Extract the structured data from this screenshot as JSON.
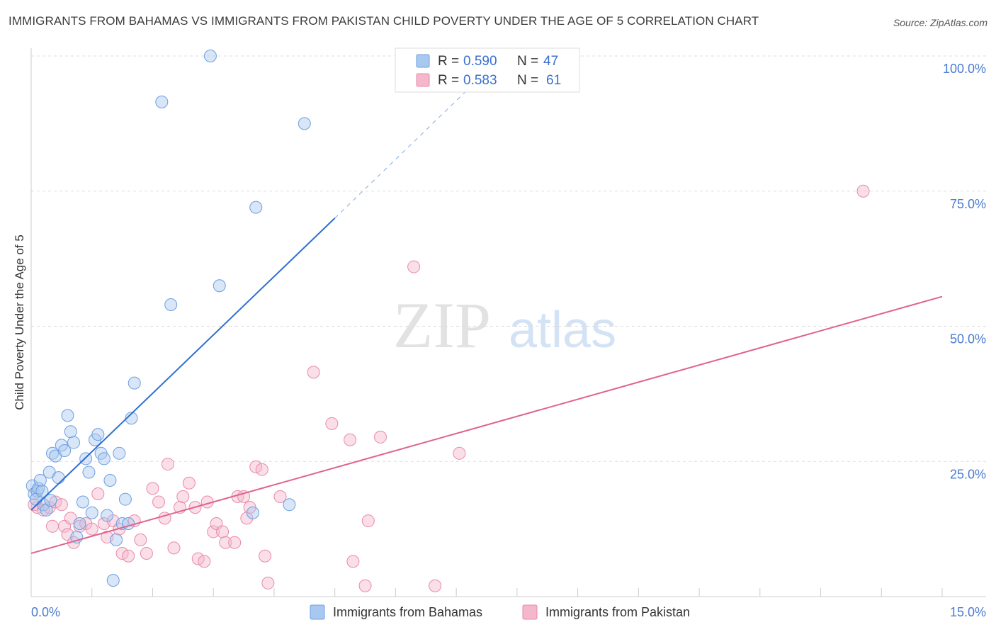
{
  "title": "IMMIGRANTS FROM BAHAMAS VS IMMIGRANTS FROM PAKISTAN CHILD POVERTY UNDER THE AGE OF 5 CORRELATION CHART",
  "source": "Source: ZipAtlas.com",
  "watermark": {
    "zip": "ZIP",
    "atlas": "atlas"
  },
  "colors": {
    "blue_fill": "#a9c8f0",
    "blue_stroke": "#6c9fe0",
    "blue_line": "#2e6fd0",
    "pink_fill": "#f5b7cb",
    "pink_stroke": "#e88aaa",
    "pink_line": "#e0638f",
    "axis_label": "#4a7bd0",
    "grid": "#dddddd"
  },
  "chart_data": {
    "type": "scatter",
    "title": "IMMIGRANTS FROM BAHAMAS VS IMMIGRANTS FROM PAKISTAN CHILD POVERTY UNDER THE AGE OF 5 CORRELATION CHART",
    "xlabel": "",
    "ylabel": "Child Poverty Under the Age of 5",
    "xlim": [
      0,
      15
    ],
    "ylim": [
      0,
      100
    ],
    "x_tick_labels": [
      "0.0%",
      "15.0%"
    ],
    "y_tick_values": [
      25,
      50,
      75,
      100
    ],
    "y_tick_labels": [
      "25.0%",
      "50.0%",
      "75.0%",
      "100.0%"
    ],
    "legend": {
      "entries": [
        {
          "r_label": "R =",
          "r_value": "0.590",
          "n_label": "N =",
          "n_value": "47"
        },
        {
          "r_label": "R =",
          "r_value": "0.583",
          "n_label": "N =",
          "n_value": "61"
        }
      ]
    },
    "bottom_legend": [
      "Immigrants from Bahamas",
      "Immigrants from Pakistan"
    ],
    "series": [
      {
        "name": "Immigrants from Bahamas",
        "color": "blue",
        "trend": {
          "x0": 0.0,
          "y0": 16.0,
          "x1": 5.0,
          "y1": 70.0,
          "dash_to_x": 7.3,
          "dash_to_y": 95.0
        },
        "points": [
          [
            0.02,
            20.5
          ],
          [
            0.05,
            19.0
          ],
          [
            0.1,
            19.5
          ],
          [
            0.12,
            20.0
          ],
          [
            0.15,
            21.5
          ],
          [
            0.2,
            17.0
          ],
          [
            0.25,
            16.0
          ],
          [
            0.3,
            23.0
          ],
          [
            0.35,
            26.5
          ],
          [
            0.4,
            26.0
          ],
          [
            0.45,
            22.0
          ],
          [
            0.5,
            28.0
          ],
          [
            0.55,
            27.0
          ],
          [
            0.6,
            33.5
          ],
          [
            0.65,
            30.5
          ],
          [
            0.7,
            28.5
          ],
          [
            0.75,
            11.0
          ],
          [
            0.8,
            13.5
          ],
          [
            0.85,
            17.5
          ],
          [
            0.9,
            25.5
          ],
          [
            0.95,
            23.0
          ],
          [
            1.0,
            15.5
          ],
          [
            1.05,
            29.0
          ],
          [
            1.1,
            30.0
          ],
          [
            1.15,
            26.5
          ],
          [
            1.2,
            25.5
          ],
          [
            1.25,
            15.0
          ],
          [
            1.3,
            21.5
          ],
          [
            1.35,
            3.0
          ],
          [
            1.4,
            10.5
          ],
          [
            1.45,
            26.5
          ],
          [
            1.5,
            13.5
          ],
          [
            1.55,
            18.0
          ],
          [
            1.6,
            13.5
          ],
          [
            1.65,
            33.0
          ],
          [
            1.7,
            39.5
          ],
          [
            2.15,
            91.5
          ],
          [
            2.3,
            54.0
          ],
          [
            2.95,
            100.0
          ],
          [
            3.1,
            57.5
          ],
          [
            3.7,
            72.0
          ],
          [
            3.65,
            15.5
          ],
          [
            4.25,
            17.0
          ],
          [
            4.5,
            87.5
          ],
          [
            0.08,
            18.0
          ],
          [
            0.18,
            19.5
          ],
          [
            0.32,
            17.8
          ]
        ]
      },
      {
        "name": "Immigrants from Pakistan",
        "color": "pink",
        "trend": {
          "x0": 0.0,
          "y0": 8.0,
          "x1": 15.0,
          "y1": 55.5
        },
        "points": [
          [
            0.1,
            16.5
          ],
          [
            0.2,
            16.0
          ],
          [
            0.3,
            16.5
          ],
          [
            0.35,
            13.0
          ],
          [
            0.4,
            17.5
          ],
          [
            0.5,
            17.0
          ],
          [
            0.55,
            13.0
          ],
          [
            0.6,
            11.5
          ],
          [
            0.65,
            14.5
          ],
          [
            0.7,
            10.0
          ],
          [
            0.8,
            13.0
          ],
          [
            0.9,
            13.5
          ],
          [
            1.0,
            12.5
          ],
          [
            1.1,
            19.0
          ],
          [
            1.2,
            13.5
          ],
          [
            1.25,
            11.0
          ],
          [
            1.35,
            14.0
          ],
          [
            1.45,
            12.5
          ],
          [
            1.5,
            8.0
          ],
          [
            1.6,
            7.5
          ],
          [
            1.7,
            14.0
          ],
          [
            1.8,
            10.5
          ],
          [
            1.9,
            8.0
          ],
          [
            2.0,
            20.0
          ],
          [
            2.1,
            17.5
          ],
          [
            2.2,
            14.5
          ],
          [
            2.25,
            24.5
          ],
          [
            2.35,
            9.0
          ],
          [
            2.45,
            16.5
          ],
          [
            2.5,
            18.5
          ],
          [
            2.6,
            21.0
          ],
          [
            2.7,
            16.5
          ],
          [
            2.75,
            7.0
          ],
          [
            2.85,
            6.5
          ],
          [
            2.9,
            17.5
          ],
          [
            3.0,
            12.0
          ],
          [
            3.05,
            13.5
          ],
          [
            3.15,
            12.0
          ],
          [
            3.2,
            10.0
          ],
          [
            3.35,
            10.0
          ],
          [
            3.4,
            18.5
          ],
          [
            3.5,
            18.5
          ],
          [
            3.55,
            14.5
          ],
          [
            3.6,
            16.5
          ],
          [
            3.7,
            24.0
          ],
          [
            3.8,
            23.5
          ],
          [
            3.85,
            7.5
          ],
          [
            3.9,
            2.5
          ],
          [
            4.1,
            18.5
          ],
          [
            4.65,
            41.5
          ],
          [
            4.95,
            32.0
          ],
          [
            5.25,
            29.0
          ],
          [
            5.3,
            6.5
          ],
          [
            5.5,
            2.0
          ],
          [
            5.55,
            14.0
          ],
          [
            5.75,
            29.5
          ],
          [
            6.3,
            61.0
          ],
          [
            6.65,
            2.0
          ],
          [
            7.05,
            26.5
          ],
          [
            13.7,
            75.0
          ],
          [
            0.05,
            17.0
          ]
        ]
      }
    ]
  }
}
